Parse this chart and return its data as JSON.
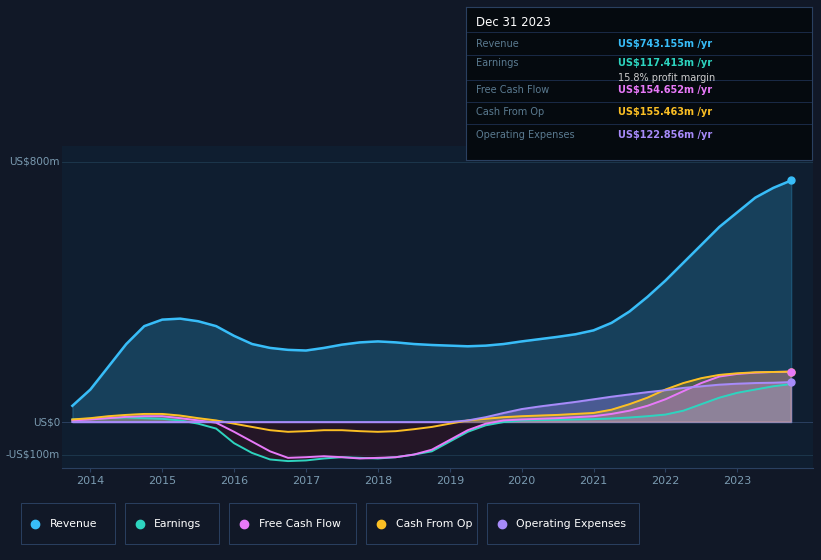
{
  "bg_color": "#111827",
  "chart_bg": "#0f1e30",
  "grid_color": "#1e3a50",
  "title_box": {
    "title": "Dec 31 2023",
    "rows": [
      {
        "label": "Revenue",
        "value": "US$743.155m /yr",
        "value_color": "#38bdf8"
      },
      {
        "label": "Earnings",
        "value": "US$117.413m /yr",
        "value_color": "#2dd4bf"
      },
      {
        "label": "",
        "value": "15.8% profit margin",
        "value_color": "#cccccc"
      },
      {
        "label": "Free Cash Flow",
        "value": "US$154.652m /yr",
        "value_color": "#e879f9"
      },
      {
        "label": "Cash From Op",
        "value": "US$155.463m /yr",
        "value_color": "#fbbf24"
      },
      {
        "label": "Operating Expenses",
        "value": "US$122.856m /yr",
        "value_color": "#a78bfa"
      }
    ]
  },
  "ylabel_top": "US$800m",
  "ylabel_zero": "US$0",
  "ylabel_neg": "-US$100m",
  "revenue_color": "#38bdf8",
  "earnings_color": "#2dd4bf",
  "free_cash_color": "#e879f9",
  "cash_op_color": "#fbbf24",
  "op_expenses_color": "#a78bfa",
  "legend_items": [
    {
      "label": "Revenue",
      "color": "#38bdf8"
    },
    {
      "label": "Earnings",
      "color": "#2dd4bf"
    },
    {
      "label": "Free Cash Flow",
      "color": "#e879f9"
    },
    {
      "label": "Cash From Op",
      "color": "#fbbf24"
    },
    {
      "label": "Operating Expenses",
      "color": "#a78bfa"
    }
  ]
}
